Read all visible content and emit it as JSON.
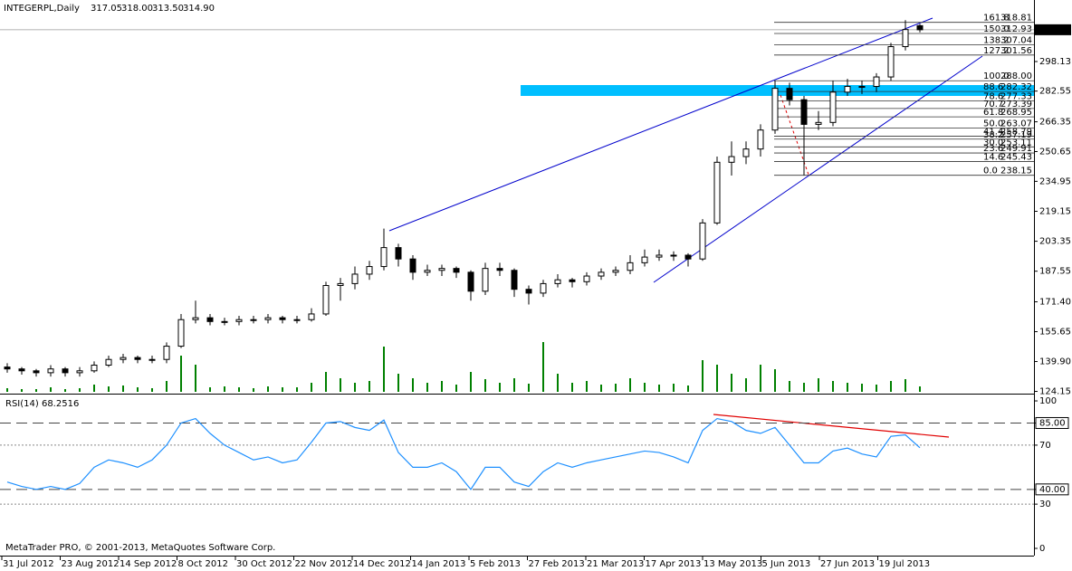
{
  "chart_data": {
    "type": "candlestick",
    "title": "INTEGERPL,Daily",
    "header_values": [
      "317.05",
      "318.00",
      "313.50",
      "314.90"
    ],
    "ylim": [
      122.97,
      330.59
    ],
    "yticks": [
      298.13,
      282.55,
      266.35,
      250.65,
      234.95,
      219.15,
      203.35,
      187.55,
      {
        "value": 171.4,
        "label": "171.40"
      },
      155.65,
      {
        "value": 139.9,
        "label": "139.90"
      },
      124.15
    ],
    "last_price": {
      "value": 314.9,
      "label": "314.90"
    },
    "x_labels": [
      "31 Jul 2012",
      "23 Aug 2012",
      "14 Sep 2012",
      "8 Oct 2012",
      "30 Oct 2012",
      "22 Nov 2012",
      "14 Dec 2012",
      "14 Jan 2013",
      "5 Feb 2013",
      "27 Feb 2013",
      "21 Mar 2013",
      "17 Apr 2013",
      "13 May 2013",
      "5 Jun 2013",
      "27 Jun 2013",
      "19 Jul 2013"
    ],
    "ohlc": [
      [
        137,
        139,
        134,
        136
      ],
      [
        136,
        137,
        133,
        135
      ],
      [
        135,
        136,
        132,
        134
      ],
      [
        134,
        138,
        132,
        136
      ],
      [
        136,
        137,
        132,
        134
      ],
      [
        134,
        137,
        132,
        135
      ],
      [
        135,
        140,
        134,
        138
      ],
      [
        138,
        143,
        137,
        141
      ],
      [
        141,
        144,
        139,
        142
      ],
      [
        142,
        143,
        139,
        141
      ],
      [
        141,
        143,
        139,
        141
      ],
      [
        141,
        150,
        139,
        148
      ],
      [
        148,
        165,
        147,
        162
      ],
      [
        162,
        172,
        160,
        163
      ],
      [
        163,
        165,
        159,
        161
      ],
      [
        161,
        163,
        159,
        161
      ],
      [
        161,
        164,
        159,
        162
      ],
      [
        162,
        164,
        160,
        162
      ],
      [
        162,
        165,
        160,
        163
      ],
      [
        163,
        164,
        160,
        162
      ],
      [
        162,
        164,
        160,
        162
      ],
      [
        162,
        168,
        161,
        165
      ],
      [
        165,
        182,
        164,
        180
      ],
      [
        180,
        184,
        172,
        181
      ],
      [
        181,
        190,
        178,
        186
      ],
      [
        186,
        193,
        183,
        190
      ],
      [
        190,
        210,
        188,
        200
      ],
      [
        200,
        202,
        190,
        194
      ],
      [
        194,
        196,
        183,
        187
      ],
      [
        187,
        191,
        185,
        188
      ],
      [
        188,
        191,
        185,
        189
      ],
      [
        189,
        190,
        184,
        187
      ],
      [
        187,
        188,
        172,
        177
      ],
      [
        177,
        192,
        175,
        189
      ],
      [
        189,
        192,
        185,
        188
      ],
      [
        188,
        189,
        174,
        178
      ],
      [
        178,
        180,
        170,
        176
      ],
      [
        176,
        183,
        174,
        181
      ],
      [
        181,
        186,
        179,
        183
      ],
      [
        183,
        184,
        179,
        182
      ],
      [
        182,
        187,
        180,
        185
      ],
      [
        185,
        189,
        183,
        187
      ],
      [
        187,
        190,
        185,
        188
      ],
      [
        188,
        196,
        186,
        192
      ],
      [
        192,
        199,
        190,
        195
      ],
      [
        195,
        199,
        193,
        196
      ],
      [
        196,
        198,
        193,
        196
      ],
      [
        196,
        197,
        190,
        194
      ],
      [
        194,
        215,
        193,
        213
      ],
      [
        213,
        248,
        212,
        245
      ],
      [
        245,
        256,
        238,
        248
      ],
      [
        248,
        256,
        244,
        252
      ],
      [
        252,
        265,
        248,
        262
      ],
      [
        262,
        288,
        260,
        284
      ],
      [
        284,
        287,
        275,
        278
      ],
      [
        278,
        280,
        238.15,
        265
      ],
      [
        265,
        272,
        262,
        266
      ],
      [
        266,
        288,
        264,
        282
      ],
      [
        282,
        289,
        280,
        285
      ],
      [
        285,
        288,
        281,
        285
      ],
      [
        285,
        292,
        282,
        290
      ],
      [
        290,
        308,
        288,
        306
      ],
      [
        306,
        320,
        304,
        315
      ],
      [
        317.05,
        318,
        313.5,
        314.9
      ]
    ],
    "volume": [
      4,
      3,
      3,
      5,
      3,
      4,
      8,
      6,
      7,
      5,
      4,
      12,
      40,
      30,
      5,
      6,
      5,
      4,
      6,
      5,
      5,
      10,
      22,
      15,
      10,
      12,
      50,
      20,
      15,
      10,
      12,
      8,
      22,
      14,
      10,
      15,
      9,
      55,
      20,
      10,
      12,
      8,
      9,
      15,
      10,
      8,
      9,
      7,
      35,
      30,
      20,
      15,
      30,
      25,
      12,
      10,
      15,
      12,
      10,
      9,
      8,
      12,
      14,
      6
    ],
    "volume_lim": [
      0,
      60
    ],
    "volume_color": "#008000",
    "fib_levels": [
      {
        "level": "161.8",
        "price": {
          "value": 318.81,
          "label": "318.81"
        }
      },
      {
        "level": "150.0",
        "price": {
          "value": 312.93,
          "label": "312.93"
        }
      },
      {
        "level": "138.2",
        "price": {
          "value": 307.04,
          "label": "307.04"
        }
      },
      {
        "level": "127.2",
        "price": {
          "value": 301.56,
          "label": "301.56"
        }
      },
      {
        "level": "100.0",
        "price": {
          "value": 288,
          "label": "288.00"
        }
      },
      {
        "level": "88.6",
        "price": {
          "value": 282.32,
          "label": "282.32"
        }
      },
      {
        "level": "78.6",
        "price": {
          "value": 277.33,
          "label": "277.33"
        }
      },
      {
        "level": "70.7",
        "price": {
          "value": 273.39,
          "label": "273.39"
        }
      },
      {
        "level": "61.8",
        "price": {
          "value": 268.95,
          "label": "268.95"
        }
      },
      {
        "level": "50.0",
        "price": {
          "value": 263.07,
          "label": "263.07"
        }
      },
      {
        "level": "41.4",
        "price": {
          "value": 258.79,
          "label": "258.79"
        }
      },
      {
        "level": "38.2",
        "price": {
          "value": 257.19,
          "label": "257.19"
        }
      },
      {
        "level": "30.0",
        "price": {
          "value": 253.11,
          "label": "253.11"
        }
      },
      {
        "level": "23.6",
        "price": {
          "value": 249.91,
          "label": "249.91"
        }
      },
      {
        "level": "14.6",
        "price": {
          "value": 245.43,
          "label": "245.43"
        }
      },
      {
        "level": "0.0",
        "price": {
          "value": 238.15,
          "label": "238.15"
        }
      }
    ],
    "rsi_title": "RSI(14) 68.2516",
    "rsi": [
      45,
      42,
      40,
      42,
      40,
      44,
      55,
      60,
      58,
      55,
      60,
      70,
      85,
      88,
      78,
      70,
      65,
      60,
      62,
      58,
      60,
      72,
      85,
      86,
      82,
      80,
      87,
      65,
      55,
      55,
      58,
      52,
      40,
      55,
      55,
      45,
      42,
      52,
      58,
      55,
      58,
      60,
      62,
      64,
      66,
      65,
      62,
      58,
      80,
      88,
      86,
      80,
      78,
      82,
      70,
      58,
      58,
      66,
      68,
      64,
      62,
      76,
      77,
      68.25
    ],
    "rsi_color": "#1e90ff",
    "rsi_lim": [
      -4.9,
      103.7
    ],
    "rsi_ticks": [
      100,
      {
        "value": 85,
        "label": "85.00"
      },
      70,
      {
        "value": 40,
        "label": "40.00"
      },
      30,
      0
    ],
    "copyright": "MetaTrader PRO, © 2001-2013, MetaQuotes Software Corp."
  }
}
